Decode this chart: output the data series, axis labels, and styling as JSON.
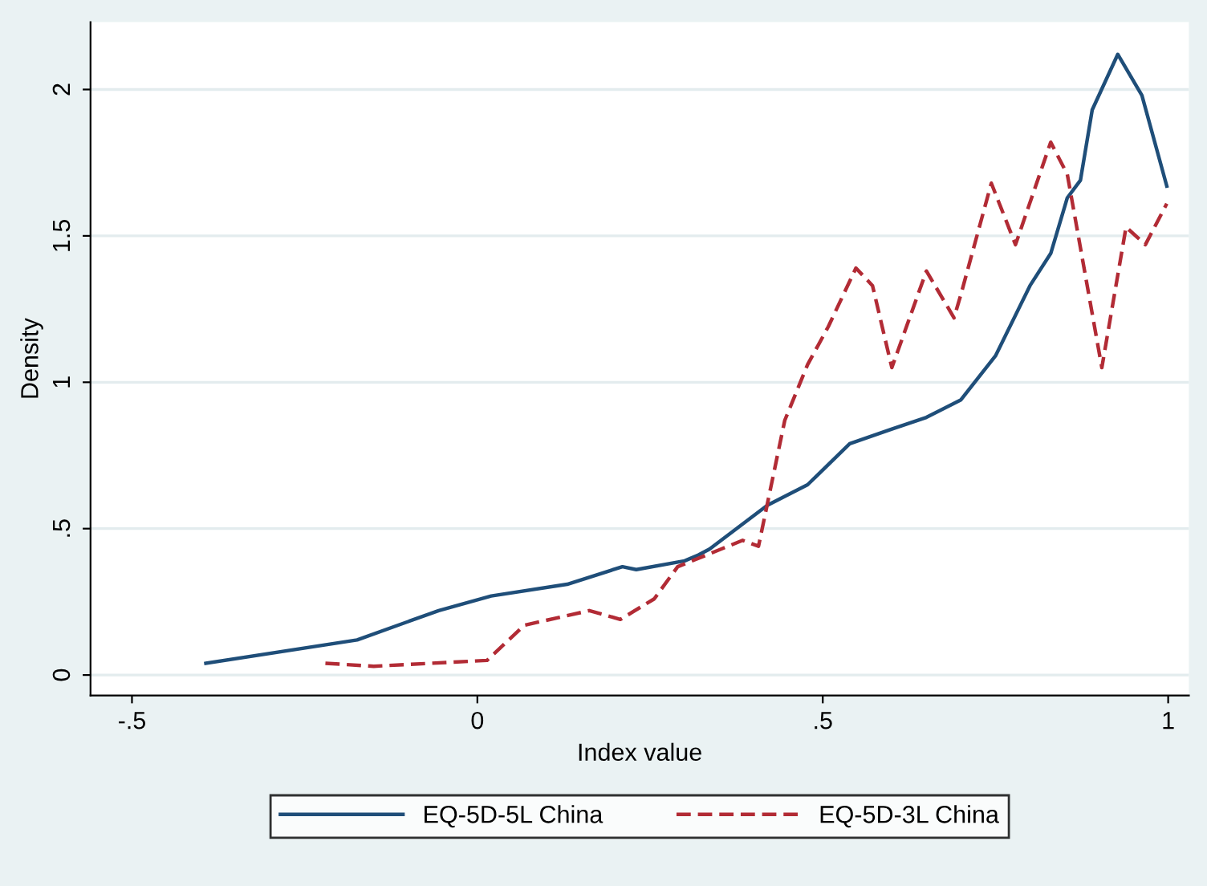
{
  "chart_data": {
    "type": "line",
    "xlabel": "Index value",
    "ylabel": "Density",
    "xlim": [
      -0.56,
      1.03
    ],
    "xticks": [
      {
        "value": -0.5,
        "label": "-.5"
      },
      0,
      {
        "value": 0.5,
        "label": ".5"
      },
      1
    ],
    "ylim": [
      -0.07,
      2.23
    ],
    "yticks": [
      0,
      {
        "value": 0.5,
        "label": ".5"
      },
      1,
      {
        "value": 1.5,
        "label": "1.5"
      },
      2
    ],
    "grid": "y",
    "legend": "bottom",
    "series": [
      {
        "name": "EQ-5D-5L China",
        "color": "#1f4e79",
        "line_style": "solid",
        "x": [
          -0.393,
          -0.174,
          -0.056,
          0.02,
          0.13,
          0.21,
          0.23,
          0.3,
          0.32,
          0.336,
          0.42,
          0.478,
          0.539,
          0.6,
          0.65,
          0.7,
          0.75,
          0.8,
          0.83,
          0.854,
          0.873,
          0.89,
          0.927,
          0.962,
          0.998
        ],
        "values": [
          0.04,
          0.12,
          0.22,
          0.27,
          0.31,
          0.37,
          0.36,
          0.39,
          0.41,
          0.43,
          0.58,
          0.65,
          0.79,
          0.84,
          0.88,
          0.94,
          1.09,
          1.33,
          1.44,
          1.63,
          1.69,
          1.93,
          2.12,
          1.98,
          1.67
        ]
      },
      {
        "name": "EQ-5D-3L China",
        "color": "#b22b35",
        "line_style": "dashed",
        "x": [
          -0.22,
          -0.15,
          0.014,
          0.068,
          0.162,
          0.207,
          0.256,
          0.29,
          0.384,
          0.407,
          0.445,
          0.478,
          0.508,
          0.548,
          0.572,
          0.6,
          0.65,
          0.69,
          0.7,
          0.744,
          0.779,
          0.83,
          0.854,
          0.904,
          0.939,
          0.967,
          0.998
        ],
        "values": [
          0.04,
          0.03,
          0.05,
          0.17,
          0.22,
          0.19,
          0.26,
          0.37,
          0.46,
          0.44,
          0.87,
          1.06,
          1.19,
          1.39,
          1.33,
          1.05,
          1.38,
          1.22,
          1.3,
          1.68,
          1.47,
          1.82,
          1.71,
          1.05,
          1.53,
          1.47,
          1.61
        ]
      }
    ]
  }
}
